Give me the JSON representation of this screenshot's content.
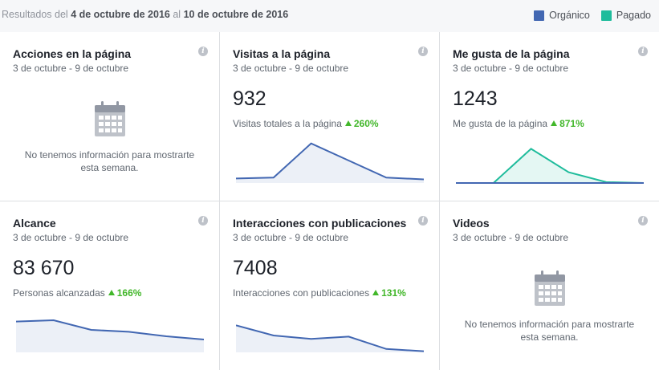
{
  "header": {
    "results_prefix": "Resultados del",
    "date_from": "4 de octubre de 2016",
    "results_mid": "al",
    "date_to": "10 de octubre de 2016",
    "legend": [
      {
        "label": "Orgánico",
        "color": "#4267b2"
      },
      {
        "label": "Pagado",
        "color": "#1fbc9c"
      }
    ]
  },
  "colors": {
    "organic": "#4267b2",
    "paid": "#1fbc9c",
    "increase": "#42b72a"
  },
  "cards": {
    "page_actions": {
      "title": "Acciones en la página",
      "range": "3 de octubre - 9 de octubre",
      "icon": "calendar-icon",
      "empty_line1": "No tenemos información para mostrarte",
      "empty_line2": "esta semana."
    },
    "page_views": {
      "title": "Visitas a la página",
      "range": "3 de octubre - 9 de octubre",
      "value": "932",
      "sub_label": "Visitas totales a la página",
      "change": "260%"
    },
    "page_likes": {
      "title": "Me gusta de la página",
      "range": "3 de octubre - 9 de octubre",
      "value": "1243",
      "sub_label": "Me gusta de la página",
      "change": "871%"
    },
    "reach": {
      "title": "Alcance",
      "range": "3 de octubre - 9 de octubre",
      "value": "83 670",
      "sub_label": "Personas alcanzadas",
      "change": "166%"
    },
    "post_engagement": {
      "title": "Interacciones con publicaciones",
      "range": "3 de octubre - 9 de octubre",
      "value": "7408",
      "sub_label": "Interacciones con publicaciones",
      "change": "131%"
    },
    "videos": {
      "title": "Videos",
      "range": "3 de octubre - 9 de octubre",
      "icon": "calendar-icon",
      "empty_line1": "No tenemos información para mostrarte",
      "empty_line2": "esta semana."
    }
  },
  "chart_data": [
    {
      "type": "area",
      "card": "page_views",
      "series": [
        {
          "values": [
            5,
            6,
            44,
            25,
            6,
            4
          ]
        }
      ],
      "ylim": [
        0,
        50
      ]
    },
    {
      "type": "area",
      "card": "page_likes",
      "series": [
        {
          "name": "Pagado",
          "values": [
            0,
            0,
            38,
            12,
            1,
            0
          ]
        },
        {
          "name": "Orgánico",
          "values": [
            0,
            0,
            0,
            0,
            0,
            0
          ]
        }
      ],
      "ylim": [
        0,
        50
      ]
    },
    {
      "type": "area",
      "card": "reach",
      "series": [
        {
          "values": [
            48,
            50,
            35,
            32,
            25,
            20
          ]
        }
      ],
      "ylim": [
        0,
        70
      ]
    },
    {
      "type": "area",
      "card": "post_engagement",
      "series": [
        {
          "values": [
            24,
            15,
            12,
            14,
            3,
            1
          ]
        }
      ],
      "ylim": [
        0,
        40
      ]
    }
  ]
}
